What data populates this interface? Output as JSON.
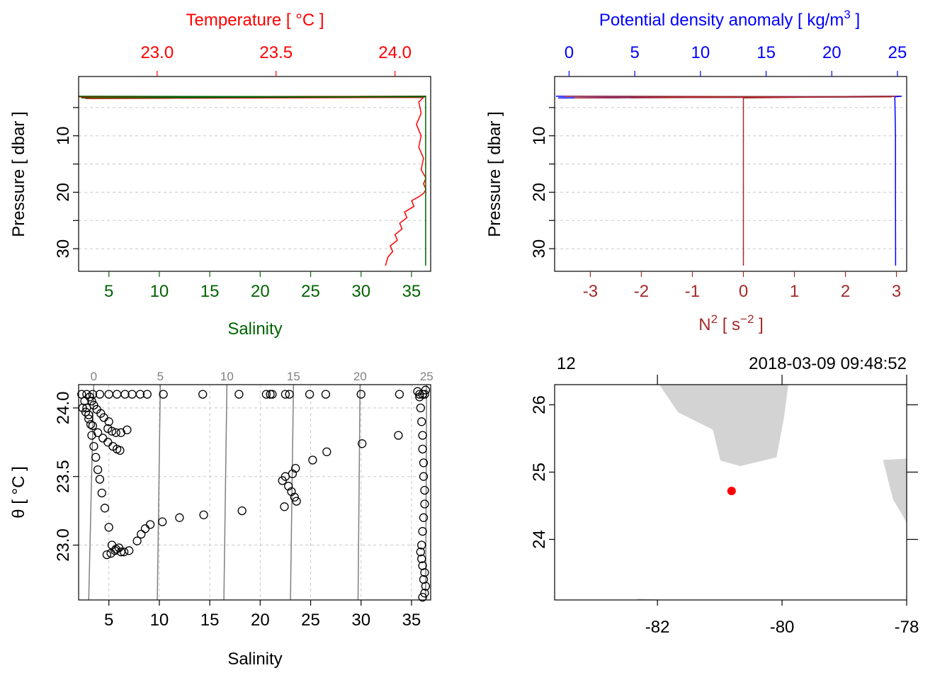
{
  "colors": {
    "temperature": "#ff0000",
    "salinity": "#006400",
    "density": "#0000ff",
    "n2": "#a52a2a",
    "axis": "#000000",
    "grid": "#c8c8c8",
    "isopycnal": "#808080",
    "land": "#d3d3d3",
    "station": "#ff0000"
  },
  "chart_data": [
    {
      "id": "salinity-temperature-profile",
      "type": "line",
      "title": "",
      "top_axis": {
        "label": "Temperature [ °C ]",
        "range": [
          22.67,
          24.15
        ],
        "ticks": [
          23.0,
          23.5,
          24.0
        ],
        "tick_labels": [
          "23.0",
          "23.5",
          "24.0"
        ]
      },
      "bottom_axis": {
        "label": "Salinity",
        "range": [
          2.0,
          36.9
        ],
        "ticks": [
          5,
          10,
          15,
          20,
          25,
          30,
          35
        ],
        "tick_labels": [
          "5",
          "10",
          "15",
          "20",
          "25",
          "30",
          "35"
        ]
      },
      "y_axis": {
        "label": "Pressure [ dbar ]",
        "range": [
          34.0,
          -0.5
        ],
        "ticks": [
          10,
          20,
          30
        ],
        "tick_labels": [
          "10",
          "20",
          "30"
        ],
        "grid": [
          5,
          10,
          15,
          20,
          25,
          30
        ]
      },
      "series": [
        {
          "name": "Temperature",
          "axis": "top",
          "x": [
            22.67,
            24.13,
            22.7,
            24.12,
            24.1,
            24.11,
            24.09,
            24.11,
            24.1,
            24.12,
            24.11,
            24.13,
            24.12,
            24.13,
            24.12,
            24.1,
            24.07,
            24.08,
            24.04,
            24.05,
            24.02,
            24.03,
            24.0,
            24.01,
            23.98,
            23.99,
            23.97,
            23.96
          ],
          "y": [
            3.1,
            3.0,
            3.4,
            3.2,
            4.0,
            6.0,
            8.0,
            10.0,
            12.0,
            14.0,
            16.0,
            17.5,
            18.5,
            19.5,
            20.2,
            20.8,
            21.5,
            22.5,
            23.5,
            24.5,
            25.5,
            26.5,
            27.5,
            28.5,
            29.5,
            30.5,
            31.5,
            33.0
          ]
        },
        {
          "name": "Salinity",
          "axis": "bottom",
          "x": [
            2.0,
            36.3,
            2.3,
            36.2,
            36.4,
            36.4,
            36.4,
            36.4
          ],
          "y": [
            3.0,
            3.1,
            3.3,
            3.0,
            3.0,
            10.0,
            20.0,
            33.0
          ]
        }
      ]
    },
    {
      "id": "density-n2-profile",
      "type": "line",
      "title": "",
      "top_axis": {
        "label": "Potential density anomaly [ kg/m",
        "label_superscript": "3",
        "label_suffix": " ]",
        "range": [
          -1.1,
          25.7
        ],
        "ticks": [
          0,
          5,
          10,
          15,
          20,
          25
        ],
        "tick_labels": [
          "0",
          "5",
          "10",
          "15",
          "20",
          "25"
        ]
      },
      "bottom_axis": {
        "label": "N",
        "label_superscript": "2",
        "label_mid": " [ s",
        "label_superscript_2": "−2",
        "label_suffix": " ]",
        "range": [
          -3.7,
          3.2
        ],
        "ticks": [
          -3,
          -2,
          -1,
          0,
          1,
          2,
          3
        ],
        "tick_labels": [
          "-3",
          "-2",
          "-1",
          "0",
          "1",
          "2",
          "3"
        ]
      },
      "y_axis": {
        "label": "Pressure [ dbar ]",
        "range": [
          34.0,
          -0.5
        ],
        "ticks": [
          10,
          20,
          30
        ],
        "tick_labels": [
          "10",
          "20",
          "30"
        ],
        "grid": [
          5,
          10,
          15,
          20,
          25,
          30
        ]
      },
      "series": [
        {
          "name": "Potential density anomaly",
          "axis": "top",
          "x": [
            -1.0,
            24.2,
            -0.8,
            25.3,
            24.8,
            24.85,
            24.85,
            24.86
          ],
          "y": [
            3.0,
            3.1,
            3.3,
            3.0,
            3.1,
            10.0,
            20.0,
            33.0
          ]
        },
        {
          "name": "N2",
          "axis": "bottom",
          "x": [
            -3.5,
            2.9,
            -3.3,
            3.0,
            0.0,
            0.0,
            0.0
          ],
          "y": [
            3.0,
            3.1,
            3.3,
            3.0,
            3.3,
            20.0,
            33.0
          ]
        }
      ]
    },
    {
      "id": "ts-diagram",
      "type": "scatter",
      "title": "",
      "xlabel": "Salinity",
      "ylabel": "θ [ °C ]",
      "x_axis": {
        "range": [
          2.0,
          36.9
        ],
        "ticks": [
          5,
          10,
          15,
          20,
          25,
          30,
          35
        ],
        "tick_labels": [
          "5",
          "10",
          "15",
          "20",
          "25",
          "30",
          "35"
        ]
      },
      "y_axis": {
        "range": [
          22.6,
          24.17
        ],
        "ticks": [
          23.0,
          23.5,
          24.0
        ],
        "tick_labels": [
          "23.0",
          "23.5",
          "24.0"
        ]
      },
      "isopycnals": {
        "labels": [
          "0",
          "5",
          "10",
          "15",
          "20",
          "25"
        ],
        "x_bottom": [
          3.0,
          9.8,
          16.4,
          23.0,
          29.7,
          36.4
        ],
        "x_top": [
          3.5,
          10.1,
          16.7,
          23.3,
          29.9,
          36.5
        ]
      },
      "series": [
        {
          "name": "cast",
          "x": [
            2.3,
            2.8,
            3.4,
            4.1,
            5.0,
            5.8,
            6.6,
            7.3,
            8.1,
            8.8,
            10.4,
            14.3,
            17.9,
            20.6,
            21.0,
            21.2,
            22.5,
            22.9,
            24.9,
            26.5,
            30.0,
            33.8,
            35.8,
            36.1,
            36.3,
            2.6,
            2.8,
            3.0,
            3.2,
            3.3,
            3.5,
            3.7,
            3.9,
            4.1,
            4.3,
            4.6,
            5.0,
            5.3,
            5.7,
            6.2,
            2.4,
            2.7,
            3.0,
            3.4,
            3.9,
            4.4,
            4.9,
            5.4,
            5.8,
            6.1,
            3.1,
            3.3,
            3.5,
            3.8,
            4.2,
            4.5,
            5.0,
            4.8,
            5.2,
            5.6,
            6.0,
            6.5,
            7.0,
            7.8,
            8.2,
            8.6,
            9.1,
            10.3,
            12.0,
            14.4,
            18.2,
            4.9,
            5.3,
            5.7,
            6.2,
            6.8,
            22.2,
            22.5,
            22.8,
            23.1,
            23.4,
            23.6,
            23.5,
            23.2,
            22.4,
            25.2,
            26.6,
            30.1,
            33.7,
            35.6,
            35.8,
            35.9,
            36.0,
            36.1,
            36.1,
            36.2,
            36.2,
            36.3,
            36.3,
            36.2,
            36.1,
            36.0,
            35.9,
            36.0,
            36.1,
            36.3,
            36.2,
            36.4,
            36.3,
            36.1,
            36.4
          ],
          "y": [
            24.1,
            24.1,
            24.1,
            24.1,
            24.1,
            24.1,
            24.1,
            24.1,
            24.1,
            24.1,
            24.1,
            24.1,
            24.1,
            24.1,
            24.1,
            24.1,
            24.1,
            24.1,
            24.1,
            24.1,
            24.1,
            24.1,
            24.1,
            24.1,
            24.1,
            24.05,
            24.0,
            23.95,
            23.88,
            23.8,
            23.72,
            23.64,
            23.55,
            23.48,
            23.38,
            23.27,
            23.13,
            23.0,
            22.97,
            22.95,
            24.0,
            23.97,
            23.92,
            23.87,
            23.82,
            23.78,
            23.75,
            23.72,
            23.7,
            23.69,
            24.08,
            24.05,
            24.02,
            23.99,
            23.96,
            23.93,
            23.9,
            22.93,
            22.94,
            22.96,
            22.98,
            22.95,
            22.96,
            23.03,
            23.08,
            23.12,
            23.15,
            23.17,
            23.2,
            23.22,
            23.25,
            23.85,
            23.83,
            23.82,
            23.82,
            23.84,
            23.47,
            23.5,
            23.43,
            23.39,
            23.35,
            23.32,
            23.56,
            23.52,
            23.28,
            23.62,
            23.68,
            23.74,
            23.8,
            24.12,
            24.08,
            24.0,
            23.9,
            23.8,
            23.7,
            23.6,
            23.5,
            23.4,
            23.3,
            23.2,
            23.1,
            23.0,
            22.95,
            22.9,
            22.85,
            22.8,
            22.75,
            22.7,
            22.65,
            22.62,
            24.13
          ]
        }
      ]
    },
    {
      "id": "station-map",
      "type": "scatter",
      "title_left": "12",
      "title_right": "2018-03-09 09:48:52",
      "x_axis": {
        "range": [
          -83.65,
          -78.0
        ],
        "ticks": [
          -82,
          -80,
          -78
        ],
        "tick_labels": [
          "-82",
          "-80",
          "-78"
        ]
      },
      "y_axis": {
        "range": [
          23.1,
          26.3
        ],
        "ticks": [
          24,
          25,
          26
        ],
        "tick_labels": [
          "24",
          "25",
          "26"
        ]
      },
      "station": {
        "lon": -80.81,
        "lat": 24.72
      },
      "land": [
        {
          "name": "florida",
          "lon": [
            -81.97,
            -79.9,
            -79.97,
            -80.09,
            -80.67,
            -80.99,
            -81.11,
            -81.67
          ],
          "lat": [
            26.3,
            26.3,
            25.8,
            25.22,
            25.09,
            25.17,
            25.63,
            25.89
          ]
        },
        {
          "name": "bahamas",
          "lon": [
            -78.0,
            -78.38,
            -78.22,
            -78.0
          ],
          "lat": [
            25.2,
            25.18,
            24.6,
            24.25
          ]
        },
        {
          "name": "cuba",
          "lon": [
            -82.35,
            -81.78,
            -82.3
          ],
          "lat": [
            23.12,
            23.1,
            23.1
          ]
        }
      ]
    }
  ]
}
